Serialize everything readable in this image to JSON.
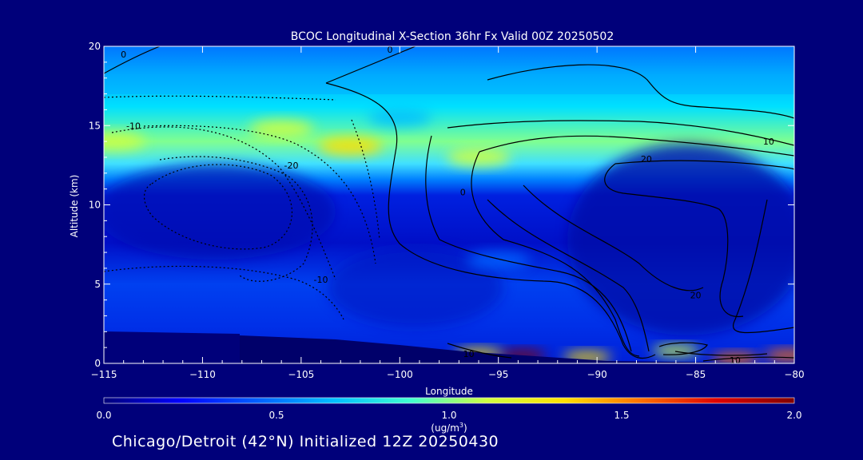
{
  "chart_data": {
    "type": "heatmap",
    "title": "BCOC Longitudinal X-Section 36hr  Fx Valid 00Z 20250502",
    "xlabel": "Longitude",
    "ylabel": "Altitude (km)",
    "xlim": [
      -115,
      -80
    ],
    "ylim": [
      0,
      20
    ],
    "x_ticks": [
      "-115",
      "-110",
      "-105",
      "-100",
      "-95",
      "-90",
      "-85",
      "-80"
    ],
    "y_ticks": [
      "0",
      "5",
      "10",
      "15",
      "20"
    ],
    "colorbar": {
      "range": [
        0.0,
        2.0
      ],
      "tick_labels": [
        "0.0",
        "0.5",
        "1.0",
        "1.5",
        "2.0"
      ],
      "unit_label": "(ug/m",
      "unit_superscript": "3",
      "unit_close": ")",
      "colors": [
        "#00007a",
        "#0000ff",
        "#0060ff",
        "#00c0ff",
        "#40ffd0",
        "#d0ff40",
        "#ffe000",
        "#ff7000",
        "#e00000",
        "#800000"
      ]
    },
    "contour_labels": [
      {
        "text": "0",
        "lon": -114.0,
        "alt": 19.5
      },
      {
        "text": "-10",
        "lon": -113.5,
        "alt": 15.0
      },
      {
        "text": "-20",
        "lon": -105.5,
        "alt": 12.5
      },
      {
        "text": "-10",
        "lon": -104.0,
        "alt": 5.3
      },
      {
        "text": "0",
        "lon": -100.5,
        "alt": 19.8
      },
      {
        "text": "0",
        "lon": -96.8,
        "alt": 10.8
      },
      {
        "text": "10",
        "lon": -81.3,
        "alt": 14.0
      },
      {
        "text": "20",
        "lon": -87.5,
        "alt": 12.9
      },
      {
        "text": "20",
        "lon": -85.0,
        "alt": 4.3
      },
      {
        "text": "10",
        "lon": -96.5,
        "alt": 0.6
      },
      {
        "text": "10",
        "lon": -83.0,
        "alt": 0.2
      }
    ],
    "aerosol_features": [
      {
        "lon": -114.5,
        "alt": 14.0,
        "value": 1.2
      },
      {
        "lon": -106.0,
        "alt": 14.8,
        "value": 1.0
      },
      {
        "lon": -102.5,
        "alt": 13.7,
        "value": 1.3
      },
      {
        "lon": -96.0,
        "alt": 13.0,
        "value": 1.0
      },
      {
        "lon": -100.0,
        "alt": 15.5,
        "value": 0.7
      },
      {
        "lon": -95.0,
        "alt": 6.5,
        "value": 0.45
      },
      {
        "lon": -93.8,
        "alt": 0.5,
        "value": 1.9
      },
      {
        "lon": -96.0,
        "alt": 0.6,
        "value": 1.4
      },
      {
        "lon": -90.5,
        "alt": 0.4,
        "value": 1.3
      },
      {
        "lon": -86.0,
        "alt": 0.8,
        "value": 1.0
      },
      {
        "lon": -83.0,
        "alt": 0.3,
        "value": 1.5
      },
      {
        "lon": -80.3,
        "alt": 0.5,
        "value": 1.6
      }
    ]
  },
  "footer": {
    "caption": "Chicago/Detroit (42°N) Initialized 12Z 20250430"
  }
}
